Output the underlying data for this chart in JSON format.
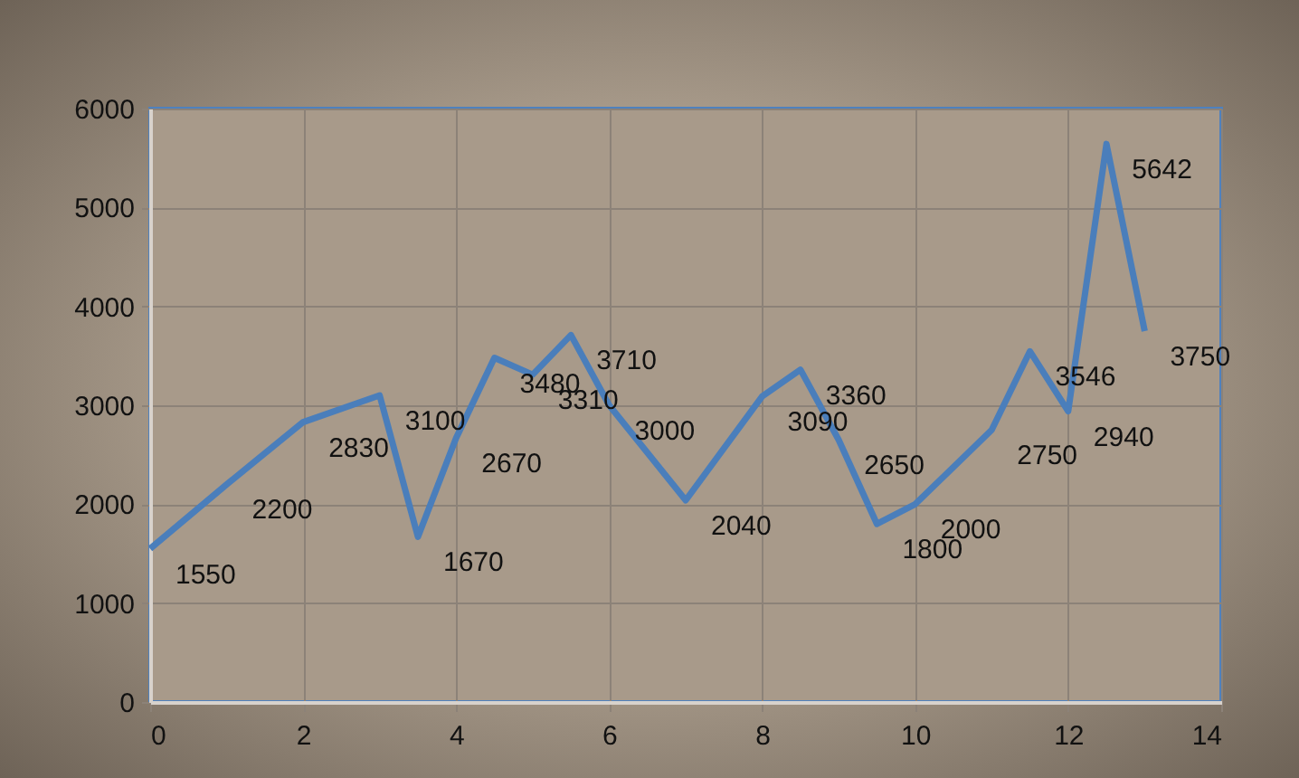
{
  "chart_data": {
    "type": "line",
    "x": [
      0,
      1,
      2,
      3,
      3.5,
      4,
      4.5,
      5,
      5.5,
      6,
      7,
      8,
      8.5,
      9,
      9.5,
      10,
      11,
      11.5,
      12,
      12.5,
      13
    ],
    "series": [
      {
        "color": "#4a7ebb",
        "values": [
          1550,
          2200,
          2830,
          3100,
          1670,
          2670,
          3480,
          3310,
          3710,
          3000,
          2040,
          3090,
          3360,
          2650,
          1800,
          2000,
          2750,
          3546,
          2940,
          5642,
          3750
        ]
      }
    ],
    "xlim": [
      0,
      14
    ],
    "xticks": [
      0,
      2,
      4,
      6,
      8,
      10,
      12,
      14
    ],
    "ylim": [
      0,
      6000
    ],
    "yticks": [
      0,
      1000,
      2000,
      3000,
      4000,
      5000,
      6000
    ],
    "grid": true,
    "data_labels": true,
    "marker": "none",
    "line_style": "solid",
    "legend": false
  }
}
